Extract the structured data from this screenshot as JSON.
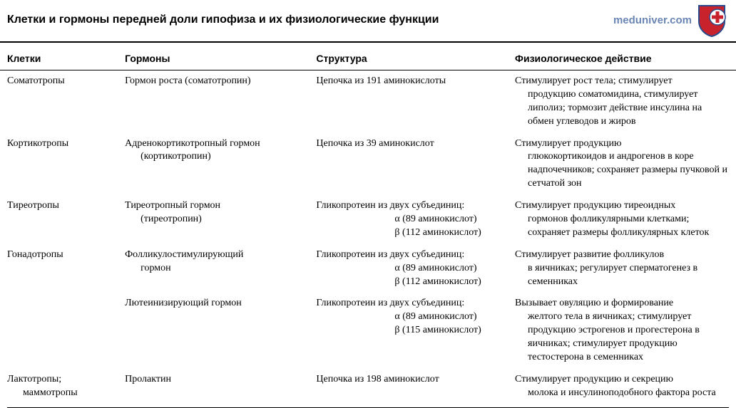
{
  "title": "Клетки и гормоны передней доли гипофиза и их физиологические функции",
  "watermark": "meduniver.com",
  "logo": {
    "shield_fill": "#c8232c",
    "shield_stroke": "#2b4a8b",
    "cross_bg": "#ffffff",
    "cross_fill": "#c8232c"
  },
  "layout": {
    "col_widths_pct": [
      16,
      26,
      27,
      31
    ],
    "header_border_color": "#000000",
    "body_font": "Georgia, Times New Roman, serif",
    "header_font": "Arial, Helvetica, sans-serif",
    "cell_fontsize": 14,
    "title_fontsize": 16
  },
  "columns": [
    "Клетки",
    "Гормоны",
    "Структура",
    "Физиологическое действие"
  ],
  "rows": [
    {
      "cell": "Соматотропы",
      "hormone_main": "Гормон роста (соматотропин)",
      "hormone_sub": "",
      "structure": [
        "Цепочка из 191 аминокислоты"
      ],
      "action_first": "Стимулирует рост тела; стимулирует",
      "action_rest": "продукцию соматомидина, стимулирует липолиз; тормозит действие инсулина на обмен углеводов и жиров"
    },
    {
      "cell": "Кортикотропы",
      "hormone_main": "Адренокортикотропный гормон",
      "hormone_sub": "(кортикотропин)",
      "structure": [
        "Цепочка из 39 аминокислот"
      ],
      "action_first": "Стимулирует продукцию",
      "action_rest": "глюкокортикоидов и андрогенов в коре надпочечников; сохраняет размеры пучковой и сетчатой зон"
    },
    {
      "cell": "Тиреотропы",
      "hormone_main": "Тиреотропный гормон",
      "hormone_sub": "(тиреотропин)",
      "structure": [
        "Гликопротеин из двух субъединиц:",
        "α (89 аминокислот)",
        "β (112 аминокислот)"
      ],
      "action_first": "Стимулирует продукцию тиреоидных",
      "action_rest": "гормонов фолликулярными клетками; сохраняет размеры фолликулярных клеток"
    },
    {
      "cell": "Гонадотропы",
      "hormone_main": "Фолликулостимулирующий",
      "hormone_sub": "гормон",
      "structure": [
        "Гликопротеин из двух субъединиц:",
        "α (89 аминокислот)",
        "β (112 аминокислот)"
      ],
      "action_first": "Стимулирует развитие фолликулов",
      "action_rest": "в яичниках; регулирует сперматогенез в семенниках"
    },
    {
      "cell": "",
      "hormone_main": "Лютеинизирующий гормон",
      "hormone_sub": "",
      "structure": [
        "Гликопротеин из двух субъединиц:",
        "α (89 аминокислот)",
        "β (115 аминокислот)"
      ],
      "action_first": "Вызывает овуляцию и формирование",
      "action_rest": "желтого тела в яичниках;  стимулирует продукцию эстрогенов и прогестерона в яичниках; стимулирует продукцию тестостерона в  семенниках"
    },
    {
      "cell": "Лактотропы; маммотропы",
      "cell_first": "Лактотропы;",
      "cell_rest": "маммотропы",
      "hormone_main": "Пролактин",
      "hormone_sub": "",
      "structure": [
        "Цепочка из 198 аминокислот"
      ],
      "action_first": "Стимулирует продукцию и секрецию",
      "action_rest": "молока и инсулиноподобного фактора роста"
    }
  ]
}
